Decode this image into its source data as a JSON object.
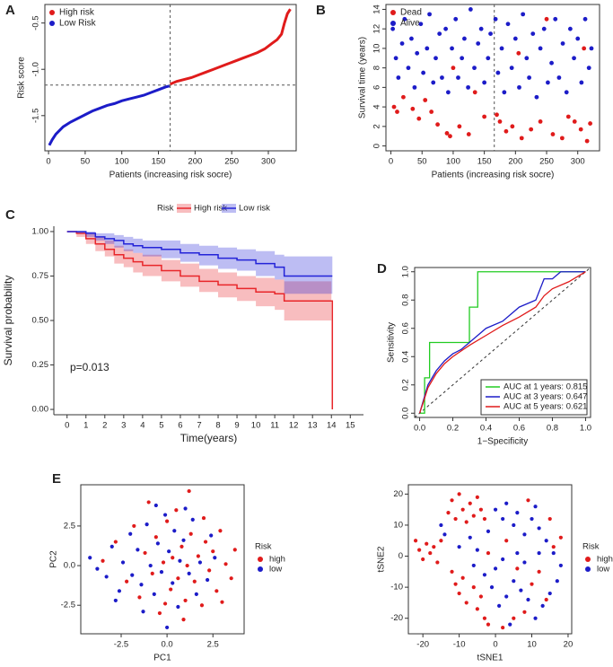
{
  "chart_data": [
    {
      "type": "line",
      "panel": "A",
      "xlabel": "Patients (increasing risk socre)",
      "ylabel": "Risk score",
      "xlim": [
        -5,
        338
      ],
      "ylim": [
        -1.88,
        -0.3
      ],
      "xticks": [
        0,
        50,
        100,
        150,
        200,
        250,
        300
      ],
      "yticks": [
        -1.5,
        {
          "value": -1,
          "label": "-1.0"
        },
        -0.5
      ],
      "vline": 166,
      "hline": -1.17,
      "legend": "top-left",
      "series": [
        {
          "name": "High risk",
          "color": "#e01b1b",
          "x": [
            166,
            175,
            185,
            195,
            205,
            215,
            225,
            235,
            245,
            255,
            265,
            275,
            285,
            295,
            305,
            312,
            318,
            322,
            326,
            330
          ],
          "values": [
            -1.16,
            -1.13,
            -1.11,
            -1.09,
            -1.06,
            -1.03,
            -1.0,
            -0.97,
            -0.94,
            -0.91,
            -0.88,
            -0.85,
            -0.82,
            -0.78,
            -0.72,
            -0.68,
            -0.62,
            -0.5,
            -0.4,
            -0.35
          ]
        },
        {
          "name": "Low Risk",
          "color": "#1c1cc8",
          "x": [
            1,
            5,
            10,
            20,
            30,
            40,
            50,
            60,
            70,
            80,
            90,
            100,
            110,
            120,
            130,
            140,
            150,
            160,
            165
          ],
          "values": [
            -1.82,
            -1.76,
            -1.7,
            -1.62,
            -1.57,
            -1.53,
            -1.49,
            -1.45,
            -1.42,
            -1.39,
            -1.37,
            -1.34,
            -1.32,
            -1.3,
            -1.28,
            -1.25,
            -1.22,
            -1.19,
            -1.18
          ]
        }
      ]
    },
    {
      "type": "scatter",
      "panel": "B",
      "xlabel": "Patients (increasing risk socre)",
      "ylabel": "Survival time (years)",
      "xlim": [
        -8,
        335
      ],
      "ylim": [
        -0.5,
        14.5
      ],
      "xticks": [
        0,
        50,
        100,
        150,
        200,
        250,
        300
      ],
      "yticks": [
        0,
        2,
        4,
        6,
        8,
        10,
        12,
        14
      ],
      "vline": 166,
      "legend": "top-left",
      "series": [
        {
          "name": "Dead",
          "color": "#e01b1b",
          "x": [
            5,
            10,
            20,
            35,
            45,
            55,
            65,
            75,
            90,
            95,
            110,
            125,
            135,
            150,
            170,
            175,
            185,
            195,
            210,
            225,
            240,
            250,
            260,
            275,
            285,
            295,
            305,
            315,
            320,
            310,
            100,
            205
          ],
          "values": [
            4,
            3.5,
            5,
            3.8,
            2.8,
            4.7,
            3.5,
            2.2,
            1.3,
            1,
            2,
            1.2,
            5.5,
            3,
            3.2,
            2.5,
            1.5,
            2,
            0.8,
            1.7,
            2.5,
            13,
            1.2,
            0.8,
            3,
            2.5,
            1.7,
            0.5,
            2.3,
            10,
            8,
            9.5
          ]
        },
        {
          "name": "Alive",
          "color": "#1c1cc8",
          "x": [
            3,
            8,
            12,
            18,
            22,
            28,
            33,
            38,
            42,
            48,
            52,
            58,
            62,
            68,
            72,
            78,
            82,
            88,
            92,
            98,
            104,
            108,
            114,
            118,
            124,
            128,
            134,
            140,
            145,
            150,
            156,
            160,
            168,
            172,
            178,
            182,
            188,
            194,
            200,
            206,
            212,
            218,
            222,
            228,
            234,
            240,
            246,
            252,
            258,
            264,
            270,
            276,
            282,
            288,
            294,
            300,
            306,
            312,
            318,
            322
          ],
          "values": [
            12,
            9,
            7,
            10.5,
            13,
            8,
            11,
            6,
            9.5,
            12.5,
            7.5,
            10,
            13.5,
            6.5,
            9,
            11.5,
            7,
            12,
            5.5,
            10,
            13,
            7,
            9,
            11,
            6,
            14,
            8,
            10.5,
            12,
            6.5,
            9,
            11.5,
            13,
            7.5,
            10,
            5.5,
            12.5,
            8,
            11,
            6,
            13.5,
            9,
            7,
            11.5,
            5,
            10,
            12,
            6.5,
            8.5,
            13,
            7,
            10.5,
            5.5,
            12,
            9,
            11,
            6.5,
            13,
            8,
            10
          ]
        }
      ]
    },
    {
      "type": "step",
      "panel": "C",
      "xlabel": "Time(years)",
      "ylabel": "Survival probability",
      "annotation": "p=0.013",
      "legend": "top",
      "legend_title": "Risk",
      "xlim": [
        -0.7,
        15.7
      ],
      "ylim": [
        -0.03,
        1.03
      ],
      "xticks": [
        0,
        1,
        2,
        3,
        4,
        5,
        6,
        7,
        8,
        9,
        10,
        11,
        12,
        13,
        14,
        15
      ],
      "yticks": [
        {
          "value": 0,
          "label": "0.00"
        },
        {
          "value": 0.25,
          "label": "0.25"
        },
        {
          "value": 0.5,
          "label": "0.50"
        },
        {
          "value": 0.75,
          "label": "0.75"
        },
        {
          "value": 1,
          "label": "1.00"
        }
      ],
      "series": [
        {
          "name": "High risk",
          "color": "#e8262a",
          "x": [
            0,
            0.5,
            1,
            1.5,
            2,
            2.5,
            3,
            3.5,
            4,
            5,
            6,
            7,
            8,
            9,
            10,
            11,
            11.5,
            12,
            13,
            14,
            14.05
          ],
          "values": [
            1,
            0.99,
            0.96,
            0.93,
            0.9,
            0.87,
            0.85,
            0.83,
            0.81,
            0.78,
            0.75,
            0.72,
            0.7,
            0.68,
            0.66,
            0.65,
            0.61,
            0.61,
            0.61,
            0.61,
            0
          ],
          "lower": [
            1,
            0.97,
            0.93,
            0.89,
            0.86,
            0.82,
            0.8,
            0.77,
            0.75,
            0.72,
            0.69,
            0.66,
            0.63,
            0.61,
            0.58,
            0.56,
            0.5,
            0.5,
            0.5,
            0.5,
            null
          ],
          "upper": [
            1,
            1,
            0.99,
            0.97,
            0.95,
            0.92,
            0.9,
            0.88,
            0.87,
            0.84,
            0.82,
            0.79,
            0.77,
            0.75,
            0.74,
            0.73,
            0.72,
            0.72,
            0.72,
            0.72,
            null
          ]
        },
        {
          "name": "Low risk",
          "color": "#2323d8",
          "x": [
            0,
            0.5,
            1,
            1.5,
            2,
            2.5,
            3,
            3.5,
            4,
            5,
            6,
            7,
            8,
            9,
            10,
            11,
            11.5,
            12,
            13,
            14,
            14.05
          ],
          "values": [
            1,
            1,
            0.99,
            0.97,
            0.96,
            0.95,
            0.93,
            0.92,
            0.91,
            0.9,
            0.88,
            0.87,
            0.85,
            0.84,
            0.82,
            0.8,
            0.75,
            0.75,
            0.75,
            0.75,
            0.75
          ],
          "lower": [
            1,
            0.99,
            0.97,
            0.95,
            0.93,
            0.91,
            0.89,
            0.88,
            0.86,
            0.85,
            0.83,
            0.81,
            0.79,
            0.78,
            0.75,
            0.73,
            0.65,
            0.65,
            0.65,
            0.65,
            0.65
          ],
          "upper": [
            1,
            1,
            1,
            0.99,
            0.99,
            0.98,
            0.97,
            0.96,
            0.95,
            0.95,
            0.93,
            0.92,
            0.91,
            0.9,
            0.89,
            0.87,
            0.86,
            0.86,
            0.86,
            0.86,
            0.86
          ]
        }
      ]
    },
    {
      "type": "line",
      "panel": "D",
      "xlabel": "1−Specificity",
      "ylabel": "Sensitivity",
      "diagonal": true,
      "legend": "bottom-right",
      "xlim": [
        -0.03,
        1.03
      ],
      "ylim": [
        -0.03,
        1.03
      ],
      "xticks": [
        {
          "value": 0,
          "label": "0.0"
        },
        0.2,
        0.4,
        0.6,
        0.8,
        {
          "value": 1,
          "label": "1.0"
        }
      ],
      "yticks": [
        {
          "value": 0,
          "label": "0.0"
        },
        0.2,
        0.4,
        0.6,
        0.8,
        {
          "value": 1,
          "label": "1.0"
        }
      ],
      "series": [
        {
          "name": "AUC at 1 years: 0.815",
          "color": "#22cc22",
          "x": [
            0,
            0.03,
            0.03,
            0.06,
            0.06,
            0.3,
            0.3,
            0.35,
            0.35,
            1
          ],
          "values": [
            0,
            0,
            0.25,
            0.25,
            0.5,
            0.5,
            0.75,
            0.75,
            1,
            1
          ]
        },
        {
          "name": "AUC at 3 years: 0.647",
          "color": "#1c1cc8",
          "x": [
            0,
            0.02,
            0.05,
            0.1,
            0.15,
            0.2,
            0.25,
            0.3,
            0.35,
            0.4,
            0.5,
            0.55,
            0.6,
            0.7,
            0.75,
            0.8,
            0.85,
            1
          ],
          "values": [
            0,
            0.08,
            0.2,
            0.3,
            0.37,
            0.42,
            0.45,
            0.5,
            0.55,
            0.6,
            0.65,
            0.7,
            0.75,
            0.8,
            0.95,
            0.95,
            1,
            1
          ]
        },
        {
          "name": "AUC at 5 years: 0.621",
          "color": "#e01b1b",
          "x": [
            0,
            0.02,
            0.05,
            0.1,
            0.15,
            0.2,
            0.3,
            0.4,
            0.5,
            0.6,
            0.7,
            0.75,
            0.8,
            0.9,
            1
          ],
          "values": [
            0,
            0.07,
            0.18,
            0.28,
            0.35,
            0.4,
            0.48,
            0.55,
            0.62,
            0.68,
            0.75,
            0.83,
            0.88,
            0.93,
            1
          ]
        }
      ]
    },
    {
      "type": "scatter",
      "panel": "E",
      "xlabel": "PC1",
      "ylabel": "PC2",
      "legend": "right",
      "legend_title": "Risk",
      "xlim": [
        -4.7,
        4.2
      ],
      "ylim": [
        -4.3,
        5.1
      ],
      "xticks": [
        -2.5,
        {
          "value": 0,
          "label": "0.0"
        },
        2.5
      ],
      "yticks": [
        -2.5,
        {
          "value": 0,
          "label": "0.0"
        },
        2.5
      ],
      "series": [
        {
          "name": "high",
          "color": "#e01b1b",
          "x": [
            -3.5,
            -2.8,
            -2.2,
            -1.8,
            -1.5,
            -1.2,
            -1.0,
            -0.8,
            -0.6,
            -0.4,
            -0.2,
            0,
            0.2,
            0.3,
            0.5,
            0.6,
            0.8,
            1.0,
            1.1,
            1.3,
            1.5,
            1.7,
            1.9,
            2.1,
            2.3,
            2.5,
            2.7,
            2.9,
            3.2,
            3.5,
            3.7,
            1.2,
            0.9,
            -0.1,
            2.0,
            3.0
          ],
          "values": [
            0.3,
            1.5,
            -1.0,
            2.5,
            -2.0,
            0.8,
            4.0,
            -0.5,
            1.8,
            -3.0,
            0.2,
            2.8,
            -1.5,
            0.5,
            3.5,
            -0.8,
            1.2,
            -2.2,
            0.0,
            2.0,
            -1.0,
            0.6,
            -2.5,
            1.5,
            -0.3,
            0.9,
            -1.6,
            2.2,
            0.1,
            -0.8,
            1.0,
            4.7,
            -3.4,
            -2.4,
            3.0,
            -2.3
          ]
        },
        {
          "name": "low",
          "color": "#1c1cc8",
          "x": [
            -4.2,
            -3.3,
            -3.0,
            -2.6,
            -2.4,
            -2.0,
            -1.9,
            -1.6,
            -1.4,
            -1.1,
            -0.9,
            -0.7,
            -0.5,
            -0.3,
            -0.1,
            0.1,
            0.3,
            0.4,
            0.6,
            0.7,
            0.9,
            1.2,
            1.4,
            1.6,
            1.8,
            2.2,
            2.4,
            -2.8,
            -1.3,
            0.0,
            -0.6,
            1.0,
            2.6,
            -3.8
          ],
          "values": [
            0.5,
            -0.7,
            1.2,
            -1.6,
            0.2,
            2.0,
            -0.6,
            1.0,
            -1.2,
            2.6,
            0.0,
            -1.8,
            1.4,
            -0.4,
            3.2,
            0.9,
            -1.1,
            2.2,
            -2.6,
            0.3,
            1.6,
            -0.5,
            2.9,
            -1.8,
            0.2,
            -0.9,
            1.9,
            -2.2,
            -2.9,
            -3.9,
            3.8,
            3.6,
            0.5,
            -0.2
          ]
        }
      ]
    },
    {
      "type": "scatter",
      "xlabel": "tSNE1",
      "ylabel": "tSNE2",
      "legend": "right",
      "legend_title": "Risk",
      "xlim": [
        -24,
        21
      ],
      "ylim": [
        -25,
        23
      ],
      "xticks": [
        -20,
        -10,
        0,
        10,
        20
      ],
      "yticks": [
        -20,
        -10,
        0,
        10,
        20
      ],
      "series": [
        {
          "name": "high",
          "color": "#e01b1b",
          "x": [
            -22,
            -21,
            -20,
            -19,
            -18,
            -17,
            -16,
            -15,
            -13,
            -12,
            -11,
            -10,
            -9,
            -8,
            -7,
            -6,
            -5,
            -4,
            -3,
            -12,
            -11,
            -10,
            -9,
            -8,
            -6,
            -5,
            -4,
            -3,
            -2,
            2,
            5,
            8,
            10,
            12,
            14,
            6,
            16,
            18,
            15,
            9,
            3,
            -2
          ],
          "values": [
            5,
            2,
            -1,
            4,
            1,
            3,
            -2,
            5,
            14,
            18,
            12,
            20,
            15,
            11,
            17,
            13,
            19,
            15,
            12,
            -5,
            -9,
            -12,
            -7,
            -15,
            -10,
            -17,
            -13,
            -20,
            -22,
            -23,
            -20,
            -18,
            -9,
            -5,
            -14,
            -4,
            3,
            6,
            12,
            18,
            5,
            1
          ]
        },
        {
          "name": "low",
          "color": "#1c1cc8",
          "x": [
            -15,
            -14,
            -10,
            -7,
            -5,
            -2,
            0,
            2,
            3,
            5,
            6,
            8,
            10,
            11,
            12,
            14,
            16,
            18,
            17,
            15,
            13,
            11,
            9,
            7,
            5,
            3,
            1,
            -1,
            -3,
            0,
            2,
            8,
            12,
            -6,
            4,
            6
          ],
          "values": [
            10,
            7,
            3,
            6,
            2,
            8,
            15,
            12,
            17,
            10,
            14,
            7,
            12,
            16,
            9,
            5,
            1,
            -3,
            -8,
            -12,
            -16,
            -20,
            -14,
            -11,
            -8,
            -13,
            -16,
            -10,
            -6,
            -4,
            -1,
            -2,
            1,
            -3,
            -22,
            1
          ]
        }
      ]
    }
  ]
}
